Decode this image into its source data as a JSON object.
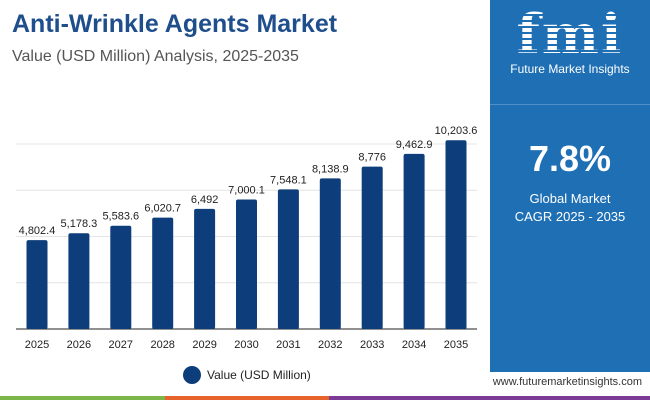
{
  "header": {
    "title": "Anti-Wrinkle Agents Market",
    "subtitle": "Value (USD Million) Analysis, 2025-2035"
  },
  "brand": {
    "logo_text": "fmi",
    "name": "Future Market Insights",
    "url": "www.futuremarketinsights.com",
    "panel_color": "#1f6fb5"
  },
  "kpi": {
    "value": "7.8%",
    "label_line1": "Global Market",
    "label_line2": "CAGR 2025 - 2035"
  },
  "chart_data": {
    "type": "bar",
    "categories": [
      "2025",
      "2026",
      "2027",
      "2028",
      "2029",
      "2030",
      "2031",
      "2032",
      "2033",
      "2034",
      "2035"
    ],
    "series": [
      {
        "name": "Value (USD Million)",
        "values": [
          4802.4,
          5178.3,
          5583.6,
          6020.7,
          6492,
          7000.1,
          7548.1,
          8138.9,
          8776,
          9462.9,
          10203.6
        ],
        "labels": [
          "4,802.4",
          "5,178.3",
          "5,583.6",
          "6,020.7",
          "6,492",
          "7,000.1",
          "7,548.1",
          "8,138.9",
          "8,776",
          "9,462.9",
          "10,203.6"
        ],
        "color": "#0d3d7a"
      }
    ],
    "ylim": [
      0,
      10000
    ],
    "grid": true,
    "legend": "bottom",
    "title": "",
    "xlabel": "",
    "ylabel": ""
  }
}
